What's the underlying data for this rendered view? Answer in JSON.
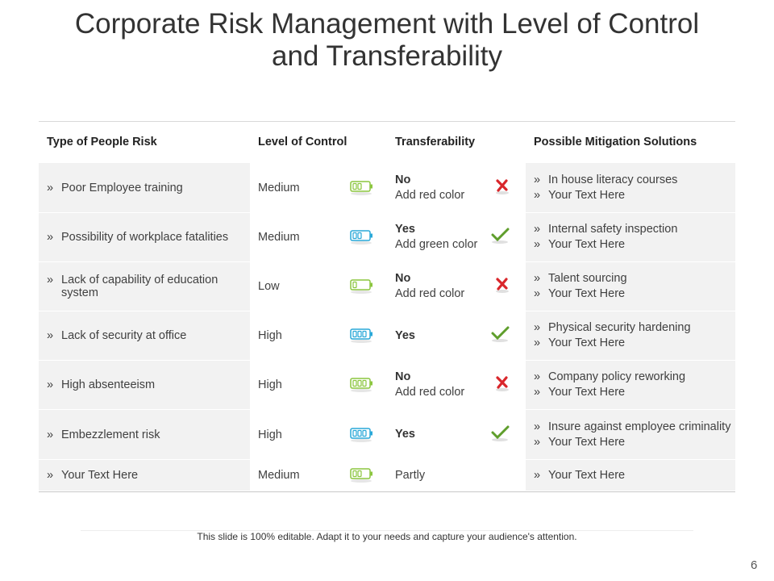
{
  "title": "Corporate Risk Management with Level of Control and Transferability",
  "table": {
    "headers": [
      "Type of People Risk",
      "Level of Control",
      "Transferability",
      "Possible Mitigation Solutions"
    ],
    "rows": [
      {
        "risk": "Poor Employee training",
        "control": "Medium",
        "transfer": [
          "No",
          "Add red color"
        ],
        "mitigation": [
          "In house literacy courses",
          "Your Text Here"
        ]
      },
      {
        "risk": "Possibility of workplace fatalities",
        "control": "Medium",
        "transfer": [
          "Yes",
          "Add green color"
        ],
        "mitigation": [
          "Internal  safety inspection",
          "Your Text Here"
        ]
      },
      {
        "risk": "Lack of capability of education system",
        "control": "Low",
        "transfer": [
          "No",
          "Add red color"
        ],
        "mitigation": [
          "Talent sourcing",
          "Your Text Here"
        ]
      },
      {
        "risk": "Lack of security at office",
        "control": "High",
        "transfer": [
          "Yes"
        ],
        "mitigation": [
          "Physical security hardening",
          "Your Text Here"
        ]
      },
      {
        "risk": "High absenteeism",
        "control": "High",
        "transfer": [
          "No",
          "Add red color"
        ],
        "mitigation": [
          "Company policy reworking",
          "Your Text Here"
        ]
      },
      {
        "risk": "Embezzlement  risk",
        "control": "High",
        "transfer": [
          "Yes"
        ],
        "mitigation": [
          "Insure  against employee criminality",
          "Your Text Here"
        ]
      },
      {
        "risk": "Your Text Here",
        "control": "Medium",
        "transfer": [
          "Partly"
        ],
        "mitigation": [
          "Your Text Here"
        ]
      }
    ]
  },
  "footer": "This slide is 100% editable. Adapt it to your needs and capture your audience's attention.",
  "page_number": "6"
}
